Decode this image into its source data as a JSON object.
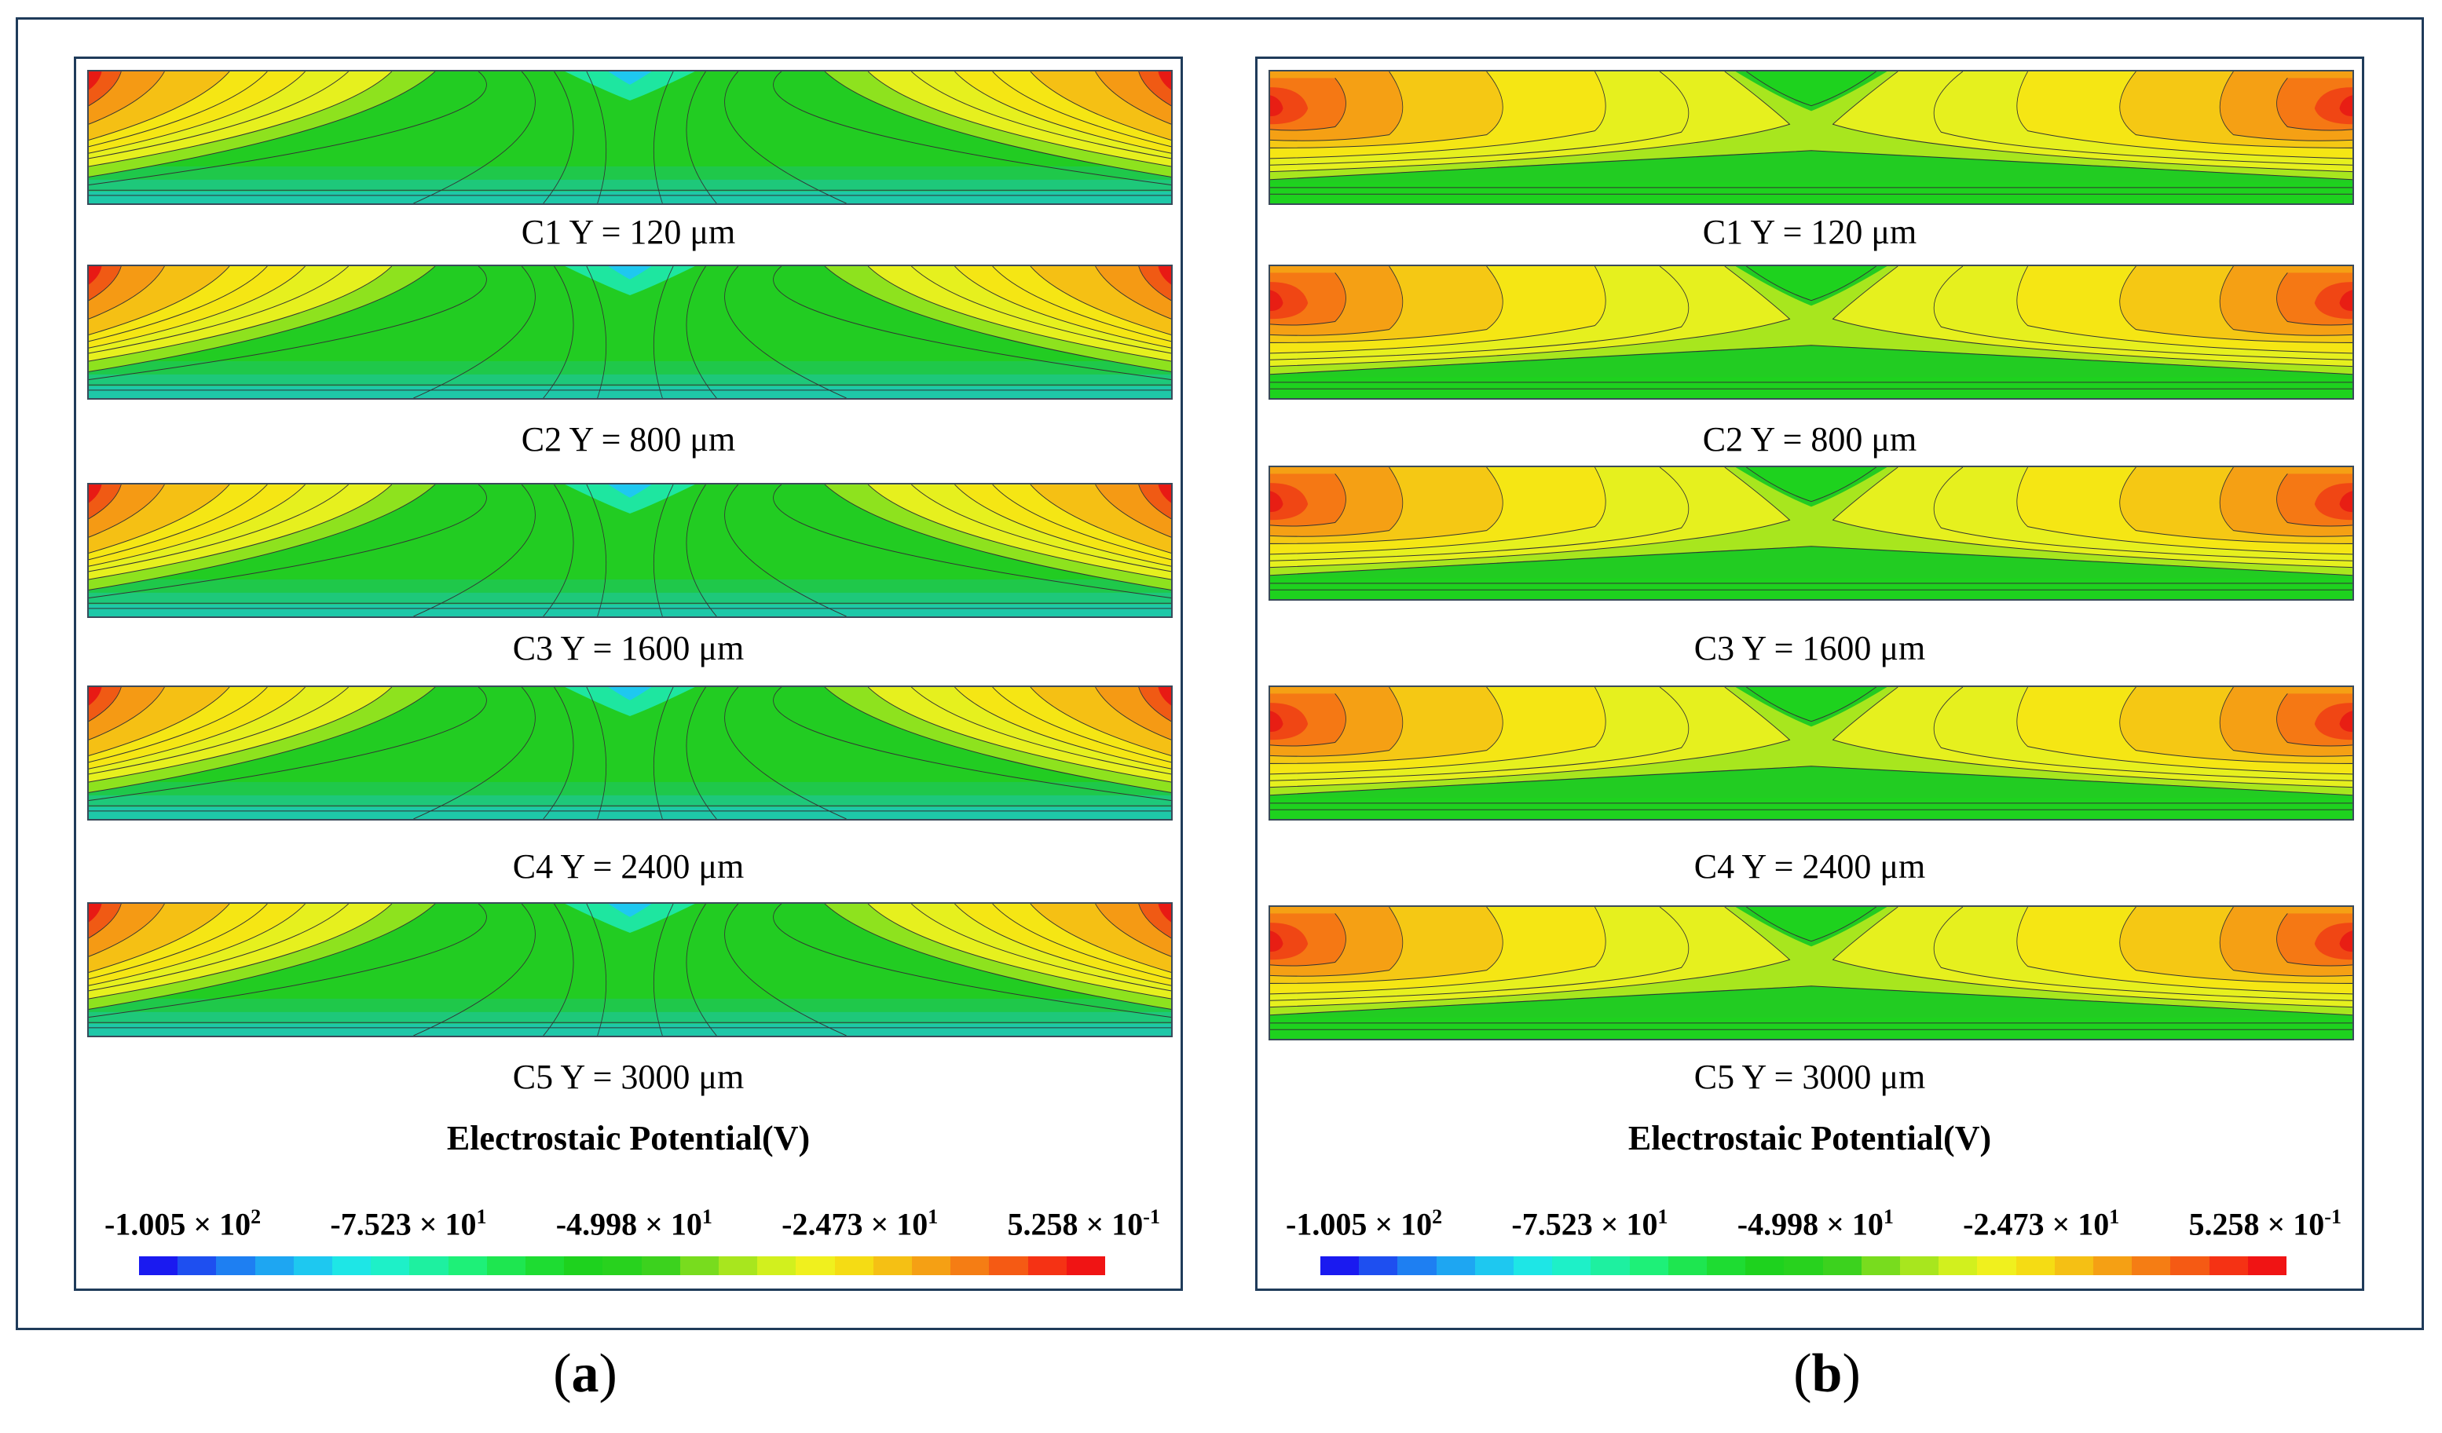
{
  "panels": {
    "a": {
      "sub_label": "a",
      "captions": [
        "C1 Y = 120 μm",
        "C2 Y = 800 μm",
        "C3 Y = 1600 μm",
        "C4 Y = 2400 μm",
        "C5 Y = 3000 μm"
      ],
      "title": "Electrostaic Potential(V)",
      "scale_labels": [
        {
          "mantissa": "-1.005",
          "exponent": "2"
        },
        {
          "mantissa": "-7.523",
          "exponent": "1"
        },
        {
          "mantissa": "-4.998",
          "exponent": "1"
        },
        {
          "mantissa": "-2.473",
          "exponent": "1"
        },
        {
          "mantissa": "5.258",
          "exponent": "-1"
        }
      ]
    },
    "b": {
      "sub_label": "b",
      "captions": [
        "C1 Y = 120 μm",
        "C2 Y = 800 μm",
        "C3 Y = 1600 μm",
        "C4 Y = 2400 μm",
        "C5 Y = 3000 μm"
      ],
      "title": "Electrostaic Potential(V)",
      "scale_labels": [
        {
          "mantissa": "-1.005",
          "exponent": "2"
        },
        {
          "mantissa": "-7.523",
          "exponent": "1"
        },
        {
          "mantissa": "-4.998",
          "exponent": "1"
        },
        {
          "mantissa": "-2.473",
          "exponent": "1"
        },
        {
          "mantissa": "5.258",
          "exponent": "-1"
        }
      ]
    }
  },
  "times_symbol": "×",
  "colorbar_colors": [
    "#1a1af0",
    "#1e4ff0",
    "#1e7ff2",
    "#1ea6f2",
    "#1ec8f0",
    "#1ee6e6",
    "#1ef0c8",
    "#1ef0a0",
    "#1ef078",
    "#1ee650",
    "#1edc32",
    "#1ed21e",
    "#28d21e",
    "#3cd21e",
    "#78dc1e",
    "#a8e61e",
    "#d2f01e",
    "#f0f01e",
    "#f5dc14",
    "#f5c014",
    "#f5a014",
    "#f57d14",
    "#f55a14",
    "#f53214",
    "#f01414"
  ],
  "frame_color": "#1f3b5a"
}
